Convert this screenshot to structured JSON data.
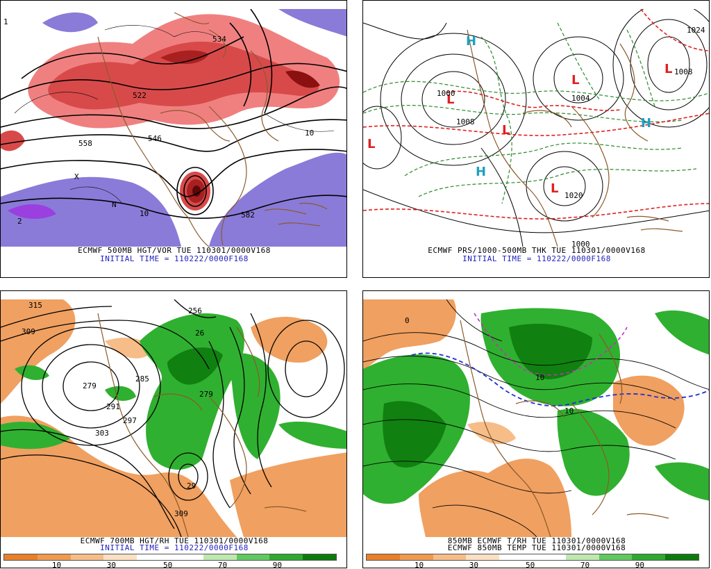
{
  "panels": [
    {
      "id": "p1",
      "title": "ECMWF 500MB HGT/VOR TUE 110301/0000V168",
      "subtitle": "INITIAL TIME = 110222/0000F168",
      "contour_labels": [
        "558",
        "546",
        "582",
        "522",
        "534",
        "10",
        "10",
        "2",
        "1",
        "N",
        "X"
      ],
      "colors": {
        "red": "#d84a4a",
        "darkred": "#8b1010",
        "pink": "#f08080",
        "violet": "#8a7bd8",
        "purple": "#9b3fe0"
      }
    },
    {
      "id": "p2",
      "title": "ECMWF PRS/1000-500MB THK TUE 110301/0000V168",
      "subtitle": "INITIAL TIME = 110222/0000F168",
      "contour_labels": [
        "1000",
        "1008",
        "1020",
        "1024",
        "1008",
        "1004",
        "1000"
      ],
      "pressure_centers": [
        "L",
        "L",
        "L",
        "L",
        "L",
        "L",
        "H",
        "H",
        "H"
      ],
      "colors": {
        "low": "#e02020",
        "high": "#20a0c0",
        "thickness": "#2a8a2a",
        "thickness_red": "#e02020",
        "isobar": "#000000"
      }
    },
    {
      "id": "p3",
      "title": "ECMWF 700MB HGT/RH TUE 110301/0000V168",
      "subtitle": "INITIAL TIME = 110222/0000F168",
      "contour_labels": [
        "315",
        "309",
        "279",
        "291",
        "297",
        "303",
        "285",
        "279",
        "256",
        "26",
        "29",
        "309"
      ],
      "scale": {
        "labels": [
          "10",
          "30",
          "50",
          "70",
          "90"
        ]
      },
      "colors": {
        "dry": "#f0a060",
        "moist": "#30b030",
        "dark_moist": "#108010"
      }
    },
    {
      "id": "p4",
      "title": "850MB ECMWF T/RH TUE 110301/0000V168",
      "subtitle": "ECMWF 850MB TEMP TUE 110301/0000V168",
      "contour_labels": [
        "0",
        "10",
        "10"
      ],
      "scale": {
        "labels": [
          "10",
          "30",
          "50",
          "70",
          "90"
        ]
      },
      "colors": {
        "dry": "#f0a060",
        "moist": "#30b030",
        "freezing_line": "#2030d0",
        "cold_line": "#c030c0"
      }
    }
  ],
  "scale_colors": [
    "#e8802a",
    "#f09a50",
    "#f6bd88",
    "#fbe0c4",
    "#ffffff",
    "#ffffff",
    "#bfe8b0",
    "#60c860",
    "#30a830",
    "#0e7a0e"
  ]
}
